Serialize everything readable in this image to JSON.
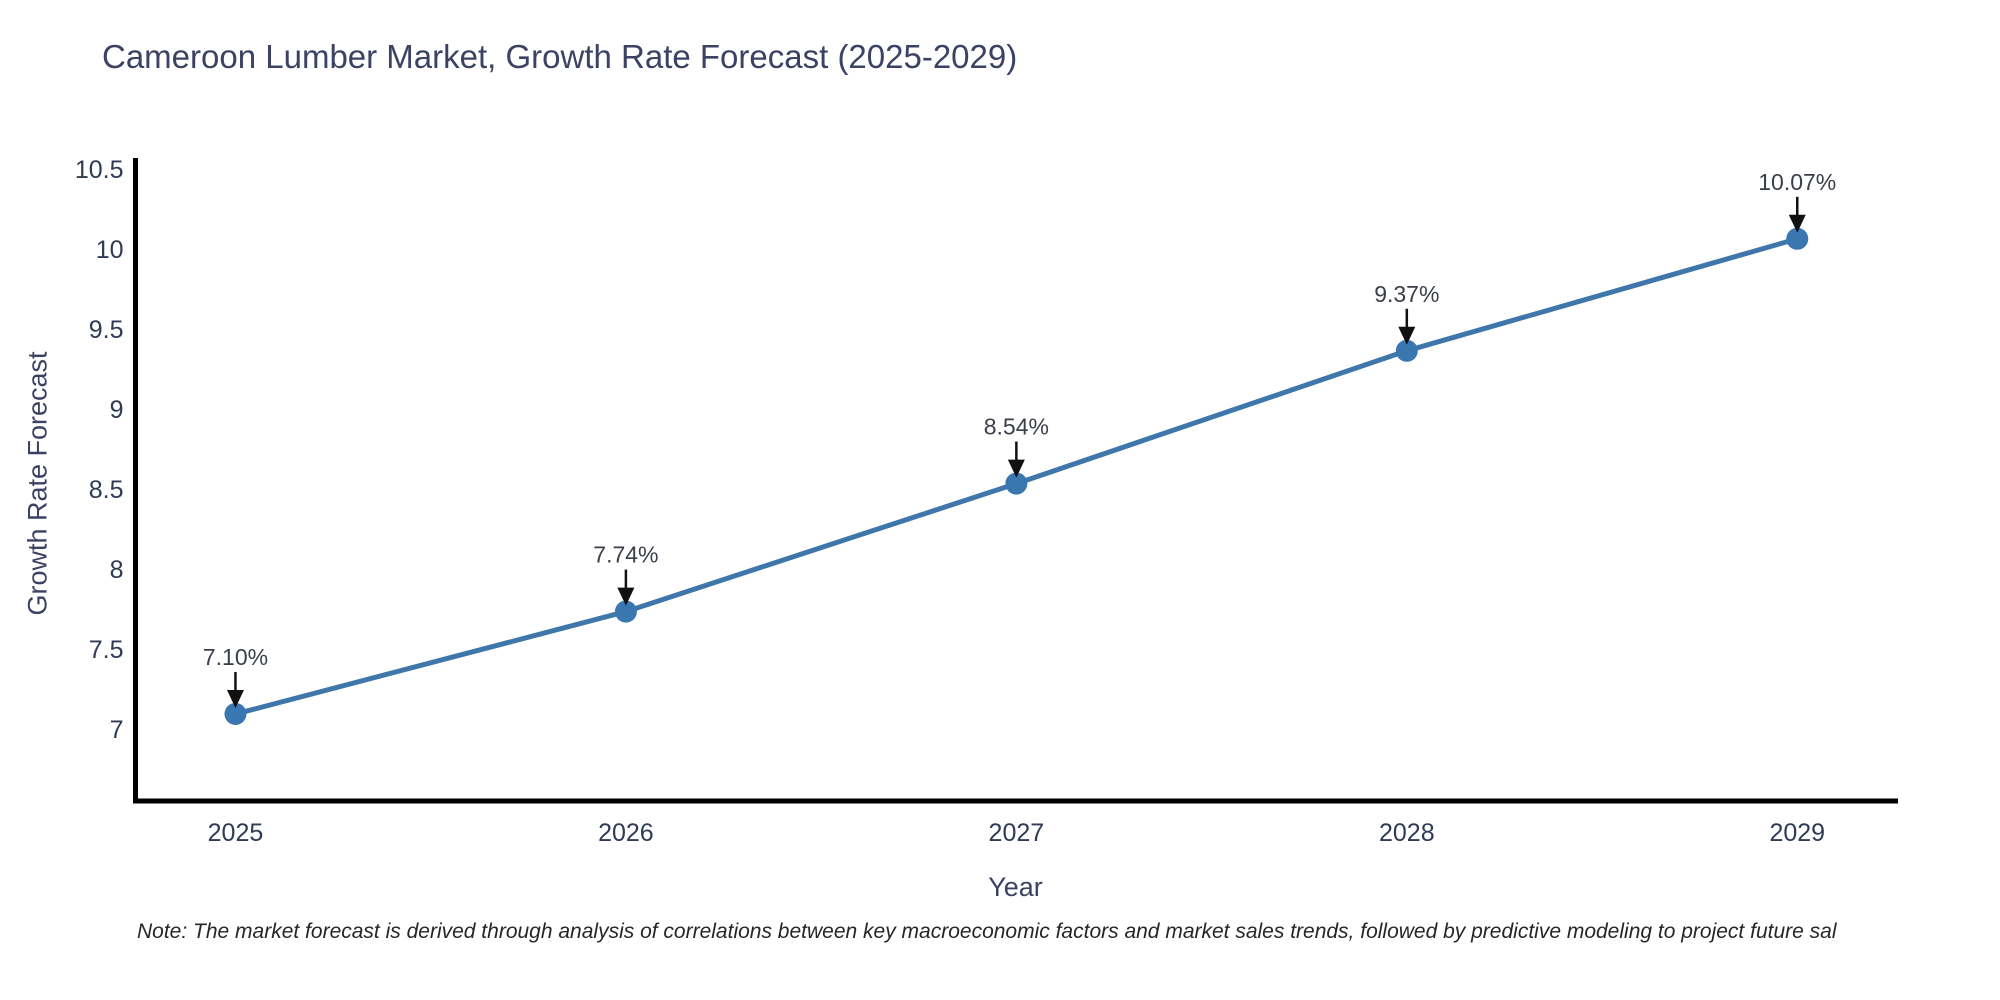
{
  "title": "Cameroon Lumber Market, Growth Rate Forecast (2025-2029)",
  "footnote": "Note: The market forecast is derived through analysis of correlations between key macroeconomic factors and market sales trends, followed by predictive modeling to project future sal",
  "chart_data": {
    "type": "line",
    "x": [
      2025,
      2026,
      2027,
      2028,
      2029
    ],
    "xtick_labels": [
      "2025",
      "2026",
      "2027",
      "2028",
      "2029"
    ],
    "series": [
      {
        "name": "Growth Rate Forecast",
        "values": [
          7.1,
          7.74,
          8.54,
          9.37,
          10.07
        ],
        "point_labels": [
          "7.10%",
          "7.74%",
          "8.54%",
          "9.37%",
          "10.07%"
        ]
      }
    ],
    "title": "Cameroon Lumber Market, Growth Rate Forecast (2025-2029)",
    "xlabel": "Year",
    "ylabel": "Growth Rate Forecast",
    "yticks": [
      7,
      7.5,
      8,
      8.5,
      9,
      9.5,
      10,
      10.5
    ],
    "ytick_labels": [
      "7",
      "7.5",
      "8",
      "8.5",
      "9",
      "9.5",
      "10",
      "10.5"
    ],
    "ylim": [
      6.556,
      10.575
    ],
    "xlim": [
      2024.744,
      2029.258
    ],
    "grid": false,
    "legend_position": "none",
    "annotations_style": "value labels above points with black down arrows",
    "colors": {
      "line": "#3f77ab",
      "marker": "#3a76b0",
      "axis": "#000000",
      "annotation_arrow": "#111111",
      "annotation_text": "#3a3f4a",
      "tick_text": "#2f3a55",
      "title_text": "#3b4263",
      "background": "#ffffff"
    }
  }
}
